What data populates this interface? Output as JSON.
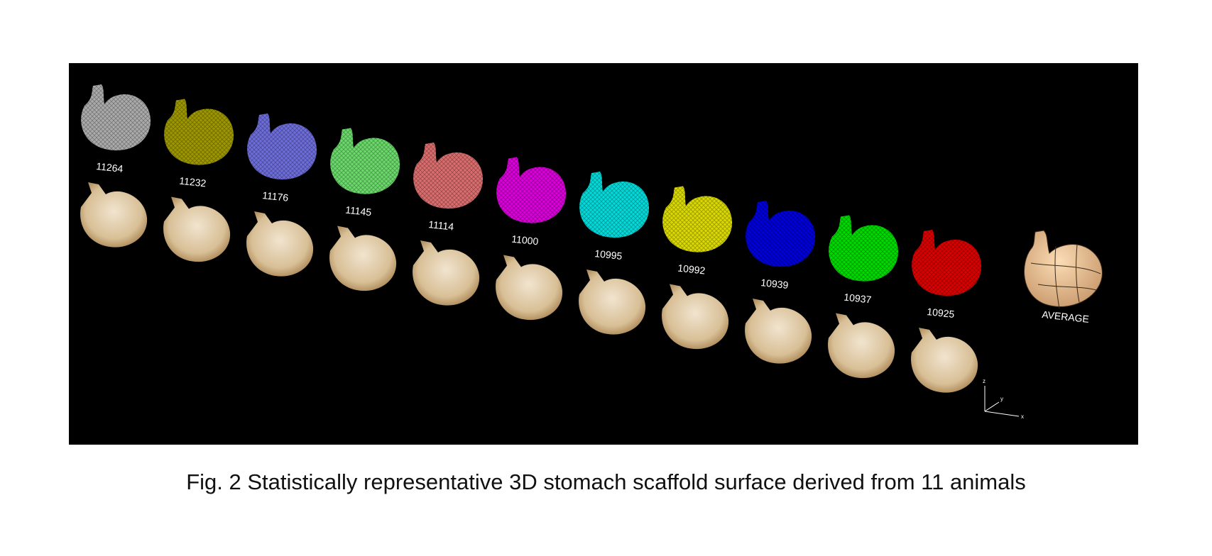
{
  "figure": {
    "background": "#000000",
    "samples": [
      {
        "label": "11264",
        "mesh_color": "#c8c8c8"
      },
      {
        "label": "11232",
        "mesh_color": "#b7b200"
      },
      {
        "label": "11176",
        "mesh_color": "#7f7fff"
      },
      {
        "label": "11145",
        "mesh_color": "#7dff7d"
      },
      {
        "label": "11114",
        "mesh_color": "#ff8080"
      },
      {
        "label": "11000",
        "mesh_color": "#ff00ff"
      },
      {
        "label": "10995",
        "mesh_color": "#00ffff"
      },
      {
        "label": "10992",
        "mesh_color": "#ffff00"
      },
      {
        "label": "10939",
        "mesh_color": "#0000ff"
      },
      {
        "label": "10937",
        "mesh_color": "#00ff00"
      },
      {
        "label": "10925",
        "mesh_color": "#ff0000"
      }
    ],
    "tissue_color": "#d9c4a1",
    "average": {
      "label": "AVERAGE",
      "color": "#f0c89a"
    },
    "axes": {
      "x": "x",
      "y": "y",
      "z": "z"
    }
  },
  "caption": "Fig. 2 Statistically representative 3D stomach scaffold surface derived from 11 animals"
}
